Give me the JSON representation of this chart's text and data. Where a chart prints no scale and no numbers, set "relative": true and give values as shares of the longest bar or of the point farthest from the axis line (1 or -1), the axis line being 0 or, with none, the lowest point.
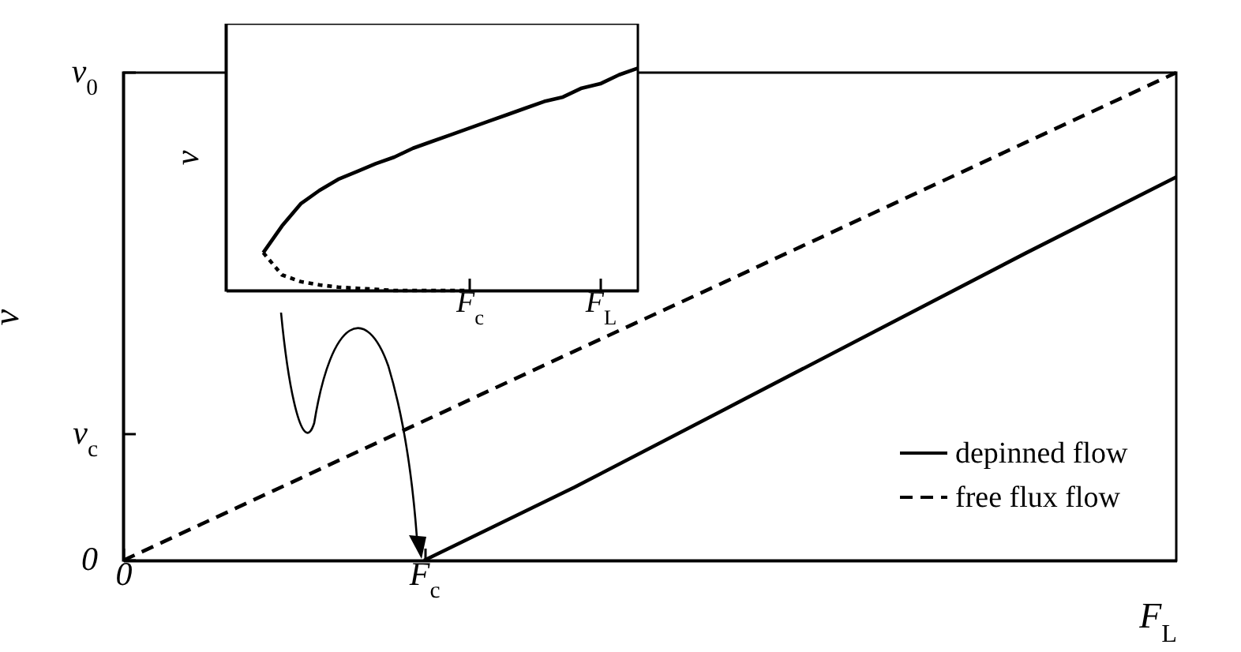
{
  "chart_data": [
    {
      "type": "line",
      "relative": true,
      "ylabel": "v",
      "xlabel": "F$_{L}$",
      "legend": "bottom right",
      "categories": [
        "0",
        null,
        "F$_{c}$",
        null,
        null,
        null,
        null,
        null
      ],
      "annotations": [
        "0",
        "v$_{c}$",
        "v$_{0}$"
      ],
      "series": [
        {
          "name": "depinned flow",
          "color": "#000000",
          "line_style": "solid",
          "values": [
            null,
            null,
            0,
            0.15,
            0.31,
            0.47,
            0.63,
            0.786
          ]
        },
        {
          "name": "free flux flow",
          "color": "#000000",
          "line_style": "dashed",
          "values": [
            0,
            0.143,
            0.286,
            0.429,
            0.571,
            0.714,
            0.857,
            1
          ]
        }
      ]
    },
    {
      "type": "line",
      "relative": true,
      "ylabel": "v",
      "categories": [
        null,
        null,
        null,
        null,
        null,
        null,
        null,
        null,
        null,
        null,
        null,
        null,
        null,
        "F$_{c}$",
        null,
        null,
        null,
        null,
        null,
        null,
        "F$_{L}$",
        null,
        null
      ],
      "series": [
        {
          "color": "#000000",
          "line_style": "solid",
          "values": [
            null,
            null,
            0.17,
            0.29,
            0.39,
            0.45,
            0.5,
            0.535,
            0.57,
            0.6,
            0.64,
            0.67,
            0.7,
            0.73,
            0.76,
            0.79,
            0.82,
            0.85,
            0.87,
            0.91,
            0.93,
            0.97,
            1
          ]
        },
        {
          "color": "#000000",
          "line_style": "dotted",
          "values": [
            null,
            null,
            0.17,
            0.07,
            0.04,
            0.025,
            0.015,
            0.01,
            0.005,
            0,
            0,
            0,
            0,
            0,
            null,
            null,
            null,
            null,
            null,
            null,
            null,
            null,
            null
          ]
        }
      ]
    }
  ]
}
